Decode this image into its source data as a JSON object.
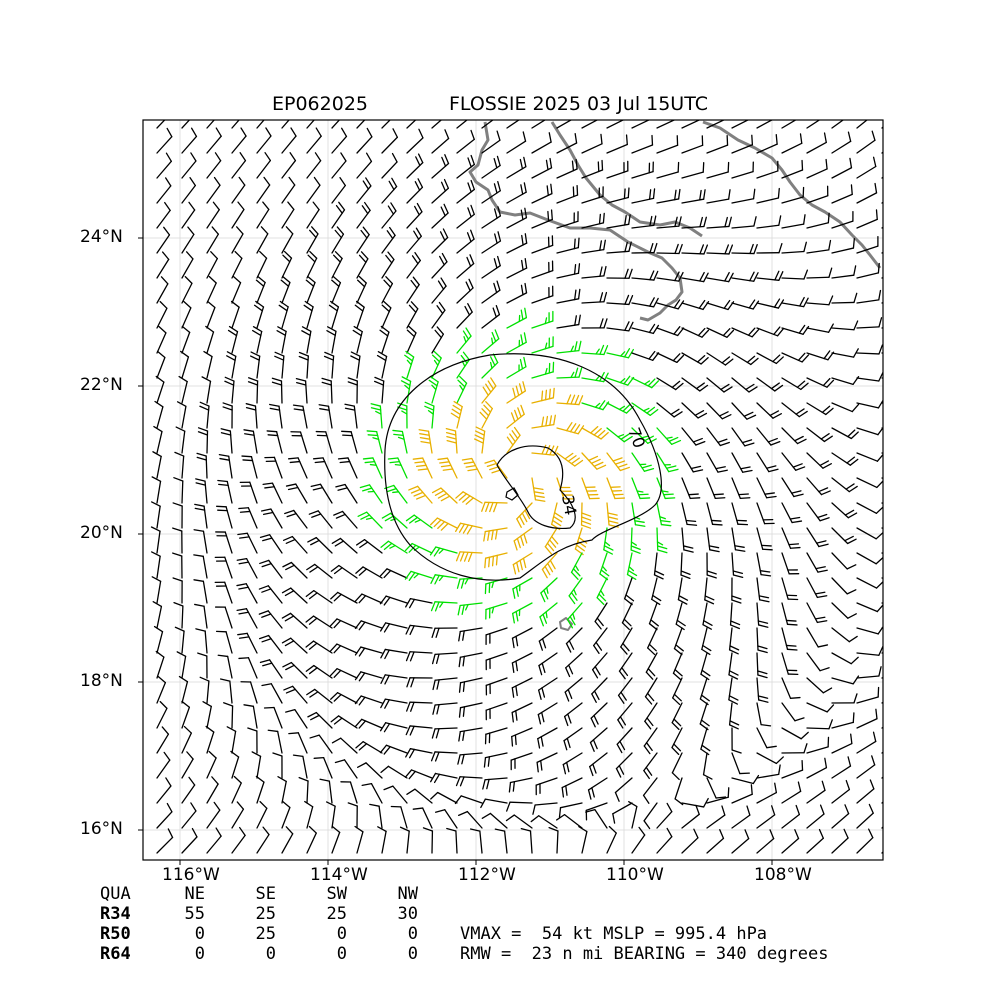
{
  "title": {
    "storm_id": "EP062025",
    "storm_time": "FLOSSIE 2025 03 Jul 15UTC"
  },
  "map": {
    "lat_labels": [
      "24°N",
      "22°N",
      "20°N",
      "18°N",
      "16°N"
    ],
    "lon_labels": [
      "116°W",
      "114°W",
      "112°W",
      "110°W",
      "108°W"
    ],
    "contour_labels": [
      "70",
      "34"
    ],
    "colors": {
      "barb_default": "#000000",
      "barb_34kt": "#00e000",
      "barb_50kt": "#e8b000",
      "coastline": "#808080",
      "grid": "#d9d9d9"
    }
  },
  "table": {
    "header": [
      "QUA",
      "NE",
      "SE",
      "SW",
      "NW"
    ],
    "rows": [
      {
        "label": "R34",
        "values": [
          "55",
          "25",
          "25",
          "30"
        ]
      },
      {
        "label": "R50",
        "values": [
          "0",
          "25",
          "0",
          "0"
        ]
      },
      {
        "label": "R64",
        "values": [
          "0",
          "0",
          "0",
          "0"
        ]
      }
    ]
  },
  "stats": {
    "line1": "VMAX =  54 kt MSLP = 995.4 hPa",
    "line2": "RMW =  23 n mi BEARING = 340 degrees"
  }
}
